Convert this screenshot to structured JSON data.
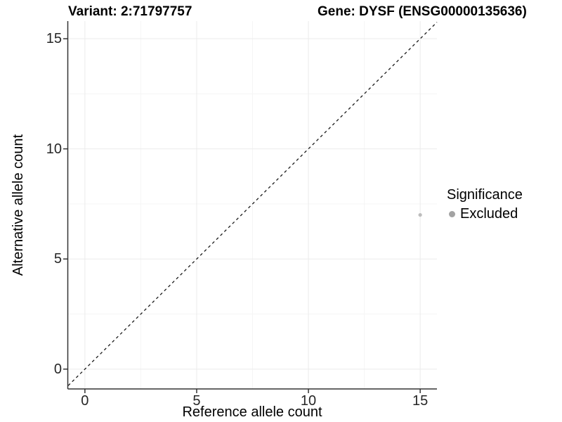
{
  "titles": {
    "variant": "Variant: 2:71797757",
    "gene": "Gene: DYSF (ENSG00000135636)"
  },
  "chart_data": {
    "type": "scatter",
    "title_left": "Variant: 2:71797757",
    "title_right": "Gene: DYSF (ENSG00000135636)",
    "xlabel": "Reference allele count",
    "ylabel": "Alternative allele count",
    "xlim": [
      -0.75,
      15.75
    ],
    "ylim": [
      -0.9,
      15.8
    ],
    "x_ticks": [
      0,
      5,
      10,
      15
    ],
    "y_ticks": [
      0,
      5,
      10,
      15
    ],
    "x_minor_gridlines": [
      2.5,
      7.5,
      12.5
    ],
    "y_minor_gridlines": [
      2.5,
      7.5,
      12.5
    ],
    "grid": "major and minor, light gray on white",
    "series": [
      {
        "name": "Excluded",
        "points": [
          {
            "x": 15,
            "y": 7
          }
        ],
        "point_color": "#bdbdbd",
        "point_radius_px": 2.6
      }
    ],
    "reference_line": {
      "type": "identity (y = x)",
      "style": "dashed",
      "color": "#1a1a1a"
    },
    "legend": {
      "position": "right",
      "title": "Significance",
      "entries": [
        {
          "label": "Excluded",
          "color": "#a3a3a3"
        }
      ]
    },
    "colors": {
      "background": "#ffffff",
      "grid_major": "#ebebeb",
      "grid_minor": "#f5f5f5",
      "axis_line": "#333333",
      "tick_text": "#262626"
    }
  }
}
